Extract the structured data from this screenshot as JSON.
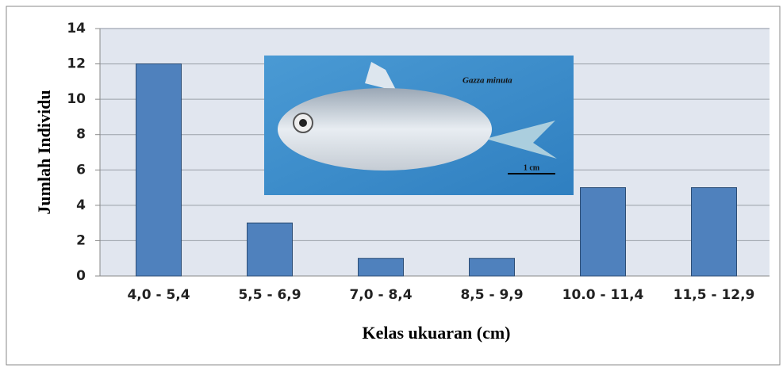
{
  "chart_data": {
    "type": "bar",
    "y_label": "Jumlah Individu",
    "x_label": "Kelas ukuaran (cm)",
    "categories": [
      "4,0 - 5,4",
      "5,5 - 6,9",
      "7,0 - 8,4",
      "8,5 - 9,9",
      "10.0 - 11,4",
      "11,5 - 12,9"
    ],
    "values": [
      12,
      3,
      1,
      1,
      5,
      5
    ],
    "color": "#4f81bd",
    "ylim": [
      0,
      14
    ],
    "yticks": [
      0,
      2,
      4,
      6,
      8,
      10,
      12,
      14
    ],
    "grid": true,
    "annotations": [
      "Gazza minuta",
      "1 cm"
    ]
  }
}
